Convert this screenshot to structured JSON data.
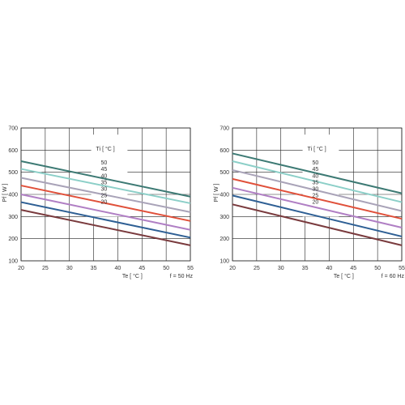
{
  "chart_data": [
    {
      "type": "line",
      "xlabel": "Te  [ °C ]",
      "ylabel": "Pf  [ W ]",
      "note": "f = 50 Hz",
      "legend_title": "Ti  [ °C ]",
      "xlim": [
        20,
        55
      ],
      "ylim": [
        100,
        700
      ],
      "xticks": [
        20,
        25,
        30,
        35,
        40,
        45,
        50,
        55
      ],
      "yticks": [
        100,
        200,
        300,
        400,
        500,
        600,
        700
      ],
      "grid": true,
      "x": [
        20,
        55
      ],
      "series": [
        {
          "name": "50",
          "values": [
            550,
            390
          ],
          "color": "#3d7a74"
        },
        {
          "name": "45",
          "values": [
            515,
            360
          ],
          "color": "#8ccfc8"
        },
        {
          "name": "40",
          "values": [
            475,
            320
          ],
          "color": "#a9a3b8"
        },
        {
          "name": "35",
          "values": [
            440,
            280
          ],
          "color": "#e0503a"
        },
        {
          "name": "30",
          "values": [
            400,
            240
          ],
          "color": "#b07fc4"
        },
        {
          "name": "25",
          "values": [
            365,
            205
          ],
          "color": "#2e5f94"
        },
        {
          "name": "20",
          "values": [
            330,
            170
          ],
          "color": "#7a3b3e"
        }
      ]
    },
    {
      "type": "line",
      "xlabel": "Te  [ °C ]",
      "ylabel": "Pf  [ W ]",
      "note": "f = 60 Hz",
      "legend_title": "Ti  [ °C ]",
      "xlim": [
        20,
        55
      ],
      "ylim": [
        100,
        700
      ],
      "xticks": [
        20,
        25,
        30,
        35,
        40,
        45,
        50,
        55
      ],
      "yticks": [
        100,
        200,
        300,
        400,
        500,
        600,
        700
      ],
      "grid": true,
      "x": [
        20,
        55
      ],
      "series": [
        {
          "name": "50",
          "values": [
            585,
            405
          ],
          "color": "#3d7a74"
        },
        {
          "name": "45",
          "values": [
            550,
            365
          ],
          "color": "#8ccfc8"
        },
        {
          "name": "40",
          "values": [
            510,
            325
          ],
          "color": "#a9a3b8"
        },
        {
          "name": "35",
          "values": [
            470,
            290
          ],
          "color": "#e0503a"
        },
        {
          "name": "30",
          "values": [
            430,
            250
          ],
          "color": "#b07fc4"
        },
        {
          "name": "25",
          "values": [
            395,
            210
          ],
          "color": "#2e5f94"
        },
        {
          "name": "20",
          "values": [
            355,
            170
          ],
          "color": "#7a3b3e"
        }
      ]
    }
  ]
}
